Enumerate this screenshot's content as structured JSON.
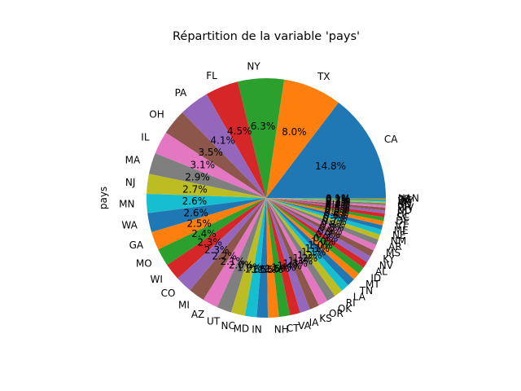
{
  "chart_data": {
    "type": "pie",
    "title": "Répartition de la variable 'pays'",
    "ylabel": "pays",
    "start_angle_deg": 0,
    "direction": "counterclockwise",
    "slices": [
      {
        "label": "CA",
        "value": 14.8,
        "pct_label": "14.8%",
        "color": "#1f77b4"
      },
      {
        "label": "TX",
        "value": 8.0,
        "pct_label": "8.0%",
        "color": "#ff7f0e"
      },
      {
        "label": "NY",
        "value": 6.3,
        "pct_label": "6.3%",
        "color": "#2ca02c"
      },
      {
        "label": "FL",
        "value": 4.5,
        "pct_label": "4.5%",
        "color": "#d62728"
      },
      {
        "label": "PA",
        "value": 4.1,
        "pct_label": "4.1%",
        "color": "#9467bd"
      },
      {
        "label": "OH",
        "value": 3.5,
        "pct_label": "3.5%",
        "color": "#8c564b"
      },
      {
        "label": "IL",
        "value": 3.1,
        "pct_label": "3.1%",
        "color": "#e377c2"
      },
      {
        "label": "MA",
        "value": 2.9,
        "pct_label": "2.9%",
        "color": "#7f7f7f"
      },
      {
        "label": "NJ",
        "value": 2.7,
        "pct_label": "2.7%",
        "color": "#bcbd22"
      },
      {
        "label": "MN",
        "value": 2.6,
        "pct_label": "2.6%",
        "color": "#17becf"
      },
      {
        "label": "WA",
        "value": 2.6,
        "pct_label": "2.6%",
        "color": "#1f77b4"
      },
      {
        "label": "GA",
        "value": 2.5,
        "pct_label": "2.5%",
        "color": "#ff7f0e"
      },
      {
        "label": "MO",
        "value": 2.4,
        "pct_label": "2.4%",
        "color": "#2ca02c"
      },
      {
        "label": "WI",
        "value": 2.3,
        "pct_label": "2.3%",
        "color": "#d62728"
      },
      {
        "label": "CO",
        "value": 2.3,
        "pct_label": "2.3%",
        "color": "#9467bd"
      },
      {
        "label": "MI",
        "value": 2.2,
        "pct_label": "2.2%",
        "color": "#8c564b"
      },
      {
        "label": "AZ",
        "value": 2.1,
        "pct_label": "2.1%",
        "color": "#e377c2"
      },
      {
        "label": "UT",
        "value": 2.0,
        "pct_label": "2.0%",
        "color": "#7f7f7f"
      },
      {
        "label": "NC",
        "value": 1.9,
        "pct_label": "1.9%",
        "color": "#bcbd22"
      },
      {
        "label": "MD",
        "value": 1.6,
        "pct_label": "1.6%",
        "color": "#17becf"
      },
      {
        "label": "IN",
        "value": 1.5,
        "pct_label": "1.5%",
        "color": "#1f77b4"
      },
      {
        "label": "NH",
        "value": 1.5,
        "pct_label": "1.5%",
        "color": "#ff7f0e"
      },
      {
        "label": "CT",
        "value": 1.5,
        "pct_label": "1.5%",
        "color": "#2ca02c"
      },
      {
        "label": "VA",
        "value": 1.4,
        "pct_label": "1.4%",
        "color": "#d62728"
      },
      {
        "label": "IA",
        "value": 1.4,
        "pct_label": "1.4%",
        "color": "#9467bd"
      },
      {
        "label": "KS",
        "value": 1.3,
        "pct_label": "1.3%",
        "color": "#8c564b"
      },
      {
        "label": "OR",
        "value": 1.3,
        "pct_label": "1.3%",
        "color": "#e377c2"
      },
      {
        "label": "OK",
        "value": 1.2,
        "pct_label": "1.2%",
        "color": "#7f7f7f"
      },
      {
        "label": "RI",
        "value": 1.2,
        "pct_label": "1.2%",
        "color": "#bcbd22"
      },
      {
        "label": "LA",
        "value": 1.1,
        "pct_label": "1.1%",
        "color": "#17becf"
      },
      {
        "label": "TN",
        "value": 1.1,
        "pct_label": "1.1%",
        "color": "#1f77b4"
      },
      {
        "label": "MT",
        "value": 1.0,
        "pct_label": "1.0%",
        "color": "#ff7f0e"
      },
      {
        "label": "ID",
        "value": 1.0,
        "pct_label": "1.0%",
        "color": "#2ca02c"
      },
      {
        "label": "AL",
        "value": 0.9,
        "pct_label": "0.9%",
        "color": "#d62728"
      },
      {
        "label": "NV",
        "value": 0.9,
        "pct_label": "0.9%",
        "color": "#9467bd"
      },
      {
        "label": "KY",
        "value": 0.9,
        "pct_label": "0.9%",
        "color": "#8c564b"
      },
      {
        "label": "MS",
        "value": 0.8,
        "pct_label": "0.8%",
        "color": "#e377c2"
      },
      {
        "label": "AR",
        "value": 0.8,
        "pct_label": "0.8%",
        "color": "#7f7f7f"
      },
      {
        "label": "NM",
        "value": 0.7,
        "pct_label": "0.7%",
        "color": "#bcbd22"
      },
      {
        "label": "NE",
        "value": 0.7,
        "pct_label": "0.7%",
        "color": "#17becf"
      },
      {
        "label": "ME",
        "value": 0.6,
        "pct_label": "0.6%",
        "color": "#1f77b4"
      },
      {
        "label": "VT",
        "value": 0.6,
        "pct_label": "0.6%",
        "color": "#ff7f0e"
      },
      {
        "label": "DE",
        "value": 0.5,
        "pct_label": "0.5%",
        "color": "#2ca02c"
      },
      {
        "label": "SC",
        "value": 0.5,
        "pct_label": "0.5%",
        "color": "#d62728"
      },
      {
        "label": "HI",
        "value": 0.4,
        "pct_label": "0.4%",
        "color": "#9467bd"
      },
      {
        "label": "ND",
        "value": 0.4,
        "pct_label": "0.4%",
        "color": "#8c564b"
      },
      {
        "label": "WV",
        "value": 0.3,
        "pct_label": "0.3%",
        "color": "#e377c2"
      },
      {
        "label": "SD",
        "value": 0.3,
        "pct_label": "0.3%",
        "color": "#7f7f7f"
      },
      {
        "label": "AK",
        "value": 0.2,
        "pct_label": "0.2%",
        "color": "#bcbd22"
      },
      {
        "label": "WY",
        "value": 0.2,
        "pct_label": "0.2%",
        "color": "#17becf"
      },
      {
        "label": "DC",
        "value": 0.1,
        "pct_label": "0.1%",
        "color": "#1f77b4"
      },
      {
        "label": "PR",
        "value": 0.1,
        "pct_label": "0.1%",
        "color": "#ff7f0e"
      },
      {
        "label": "NAN",
        "value": 0.1,
        "pct_label": "0.1%",
        "color": "#2ca02c"
      }
    ]
  }
}
